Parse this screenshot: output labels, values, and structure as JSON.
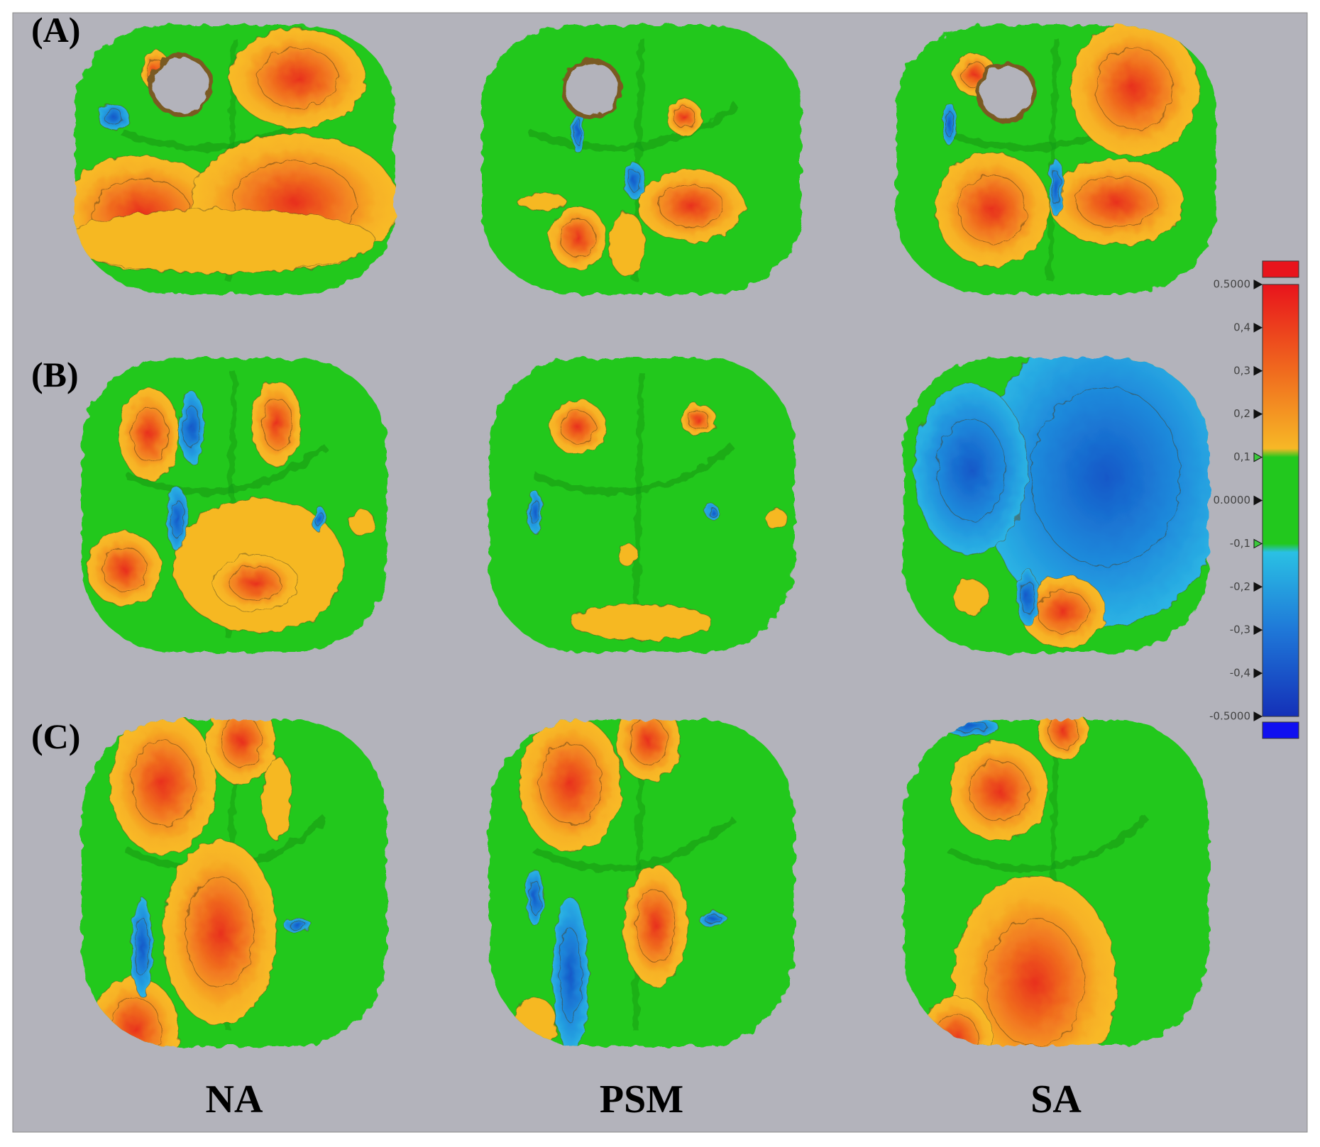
{
  "row_labels": [
    "(A)",
    "(B)",
    "(C)"
  ],
  "column_labels": [
    "NA",
    "PSM",
    "SA"
  ],
  "color_scale": {
    "lim": [
      -0.5,
      0.5
    ],
    "ticks": [
      {
        "value": 0.5,
        "label": "0.5000"
      },
      {
        "value": 0.4,
        "label": "0,4"
      },
      {
        "value": 0.3,
        "label": "0,3"
      },
      {
        "value": 0.2,
        "label": "0,2"
      },
      {
        "value": 0.1,
        "label": "0,1"
      },
      {
        "value": 0,
        "label": "0.0000"
      },
      {
        "value": -0.1,
        "label": "-0,1"
      },
      {
        "value": -0.2,
        "label": "-0,2"
      },
      {
        "value": -0.3,
        "label": "-0,3"
      },
      {
        "value": -0.4,
        "label": "-0,4"
      },
      {
        "value": -0.5,
        "label": "-0.5000"
      }
    ]
  }
}
